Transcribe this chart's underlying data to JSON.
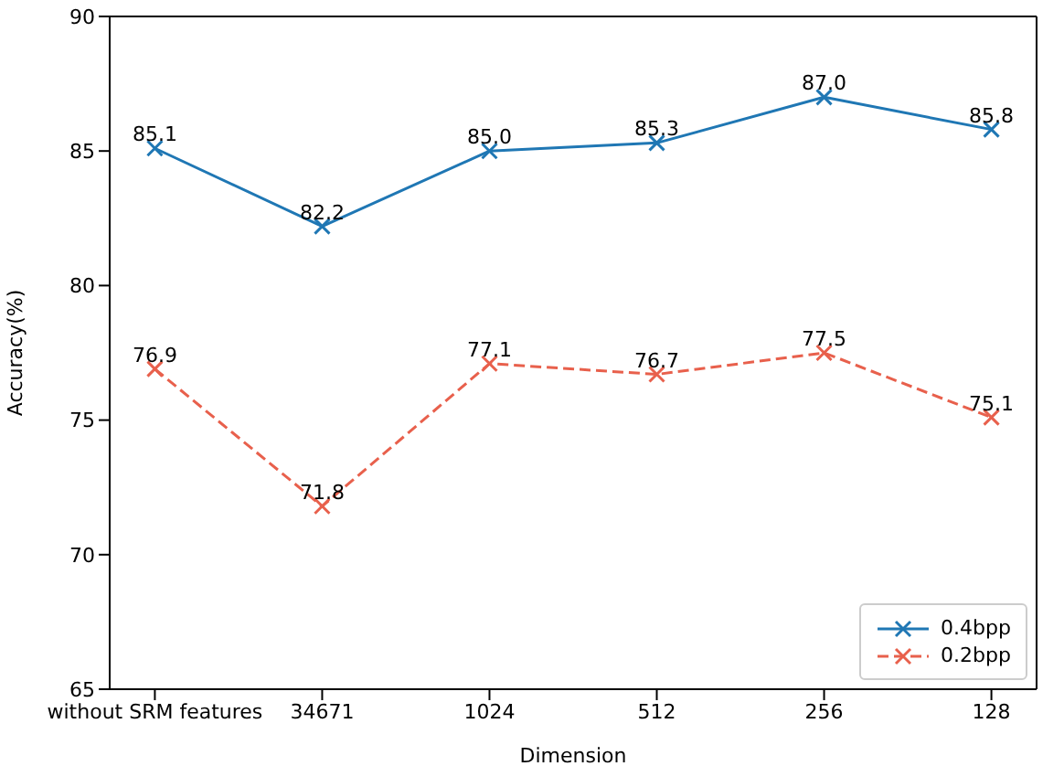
{
  "chart_data": {
    "type": "line",
    "xlabel": "Dimension",
    "ylabel": "Accuracy(%)",
    "categories": [
      "without SRM features",
      "34671",
      "1024",
      "512",
      "256",
      "128"
    ],
    "series": [
      {
        "name": "0.4bpp",
        "color": "#1f77b4",
        "values": [
          85.1,
          82.2,
          85.0,
          85.3,
          87.0,
          85.8
        ],
        "value_labels": [
          "85.1",
          "82.2",
          "85.0",
          "85.3",
          "87.0",
          "85.8"
        ],
        "line_style": "solid"
      },
      {
        "name": "0.2bpp",
        "color": "#e8604c",
        "values": [
          76.9,
          71.8,
          77.1,
          76.7,
          77.5,
          75.1
        ],
        "value_labels": [
          "76.9",
          "71.8",
          "77.1",
          "76.7",
          "77.5",
          "75.1"
        ],
        "line_style": "dashed"
      }
    ],
    "ylim": [
      65,
      90
    ],
    "yticks": [
      65,
      70,
      75,
      80,
      85,
      90
    ],
    "marker": "cross",
    "legend": "bottom right"
  }
}
